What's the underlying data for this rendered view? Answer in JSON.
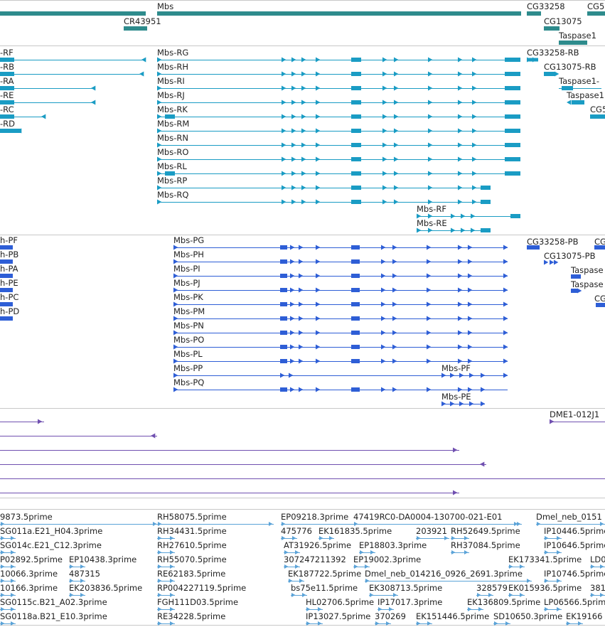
{
  "colors": {
    "gene": "#2e8b8c",
    "transcript": "#1a9cc4",
    "protein": "#2e5ed6",
    "other": "#7050b0",
    "est": "#5ba3d8",
    "divider": "#c8c8c8"
  },
  "tracks": {
    "genes": [
      {
        "label": "Mbs"
      },
      {
        "label": "CR43951"
      },
      {
        "label": "CG33258"
      },
      {
        "label": "CG13075"
      },
      {
        "label": "CG5"
      },
      {
        "label": "Taspase1"
      }
    ],
    "transcripts": [
      {
        "label": "-RF"
      },
      {
        "label": "-RB"
      },
      {
        "label": "-RA"
      },
      {
        "label": "-RE"
      },
      {
        "label": "-RC"
      },
      {
        "label": "-RD"
      },
      {
        "label": "Mbs-RG"
      },
      {
        "label": "Mbs-RH"
      },
      {
        "label": "Mbs-RI"
      },
      {
        "label": "Mbs-RJ"
      },
      {
        "label": "Mbs-RK"
      },
      {
        "label": "Mbs-RM"
      },
      {
        "label": "Mbs-RN"
      },
      {
        "label": "Mbs-RO"
      },
      {
        "label": "Mbs-RL"
      },
      {
        "label": "Mbs-RP"
      },
      {
        "label": "Mbs-RQ"
      },
      {
        "label": "Mbs-RF"
      },
      {
        "label": "Mbs-RE"
      },
      {
        "label": "CG33258-RB"
      },
      {
        "label": "CG13075-RB"
      },
      {
        "label": "Taspase1-"
      },
      {
        "label": "Taspase1"
      },
      {
        "label": "CG5"
      }
    ],
    "proteins": [
      {
        "label": "h-PF"
      },
      {
        "label": "h-PB"
      },
      {
        "label": "h-PA"
      },
      {
        "label": "h-PE"
      },
      {
        "label": "h-PC"
      },
      {
        "label": "h-PD"
      },
      {
        "label": "Mbs-PG"
      },
      {
        "label": "Mbs-PH"
      },
      {
        "label": "Mbs-PI"
      },
      {
        "label": "Mbs-PJ"
      },
      {
        "label": "Mbs-PK"
      },
      {
        "label": "Mbs-PM"
      },
      {
        "label": "Mbs-PN"
      },
      {
        "label": "Mbs-PO"
      },
      {
        "label": "Mbs-PL"
      },
      {
        "label": "Mbs-PP"
      },
      {
        "label": "Mbs-PQ"
      },
      {
        "label": "Mbs-PF"
      },
      {
        "label": "Mbs-PE"
      },
      {
        "label": "CG33258-PB"
      },
      {
        "label": "CG13075-PB"
      },
      {
        "label": "Taspase"
      },
      {
        "label": "Taspase"
      },
      {
        "label": "CG"
      },
      {
        "label": "CG"
      }
    ],
    "other": [
      {
        "label": "DME1-012J1"
      }
    ],
    "ests": [
      {
        "label": "9873.5prime"
      },
      {
        "label": "RH58075.5prime"
      },
      {
        "label": "EP09218.3prime"
      },
      {
        "label": "47419RC0-DA0004-130700-021-E01"
      },
      {
        "label": "Dmel_neb_0151"
      },
      {
        "label": "SG011a.E21_H04.3prime"
      },
      {
        "label": "RH34431.5prime"
      },
      {
        "label": "475776"
      },
      {
        "label": "EK161835.5prime"
      },
      {
        "label": "203921"
      },
      {
        "label": "RH52649.5prime"
      },
      {
        "label": "IP10446.5prime"
      },
      {
        "label": "SG014c.E21_C12.3prime"
      },
      {
        "label": "RH27610.5prime"
      },
      {
        "label": "AT31926.5prime"
      },
      {
        "label": "EP18803.3prime"
      },
      {
        "label": "RH37084.5prime"
      },
      {
        "label": "IP10646.5prime"
      },
      {
        "label": "P02892.5prime"
      },
      {
        "label": "EP10438.3prime"
      },
      {
        "label": "RH55070.5prime"
      },
      {
        "label": "307247211392"
      },
      {
        "label": "EP19002.3prime"
      },
      {
        "label": "EK173341.5prime"
      },
      {
        "label": "LD0"
      },
      {
        "label": "10066.3prime"
      },
      {
        "label": "487315"
      },
      {
        "label": "RE62183.5prime"
      },
      {
        "label": "EK187722.5prime"
      },
      {
        "label": "Dmel_neb_014216_0926_2691.3prime"
      },
      {
        "label": "IP10746.5prime"
      },
      {
        "label": "10166.3prime"
      },
      {
        "label": "EK203836.5prime"
      },
      {
        "label": "RP004227119.5prime"
      },
      {
        "label": "bs75e11.5prime"
      },
      {
        "label": "EK308713.5prime"
      },
      {
        "label": "328579"
      },
      {
        "label": "EK015936.5prime"
      },
      {
        "label": "381"
      },
      {
        "label": "SG0115c.B21_A02.3prime"
      },
      {
        "label": "FGH111D03.5prime"
      },
      {
        "label": "HL02706.5prime"
      },
      {
        "label": "IP17017.3prime"
      },
      {
        "label": "EK136809.5prime"
      },
      {
        "label": "LP06566.5prime"
      },
      {
        "label": "SG0118a.B21_E10.3prime"
      },
      {
        "label": "RE34228.5prime"
      },
      {
        "label": "IP13027.5prime"
      },
      {
        "label": "370269"
      },
      {
        "label": "EK151446.5prime"
      },
      {
        "label": "SD10650.3prime"
      },
      {
        "label": "EK19166"
      }
    ]
  }
}
